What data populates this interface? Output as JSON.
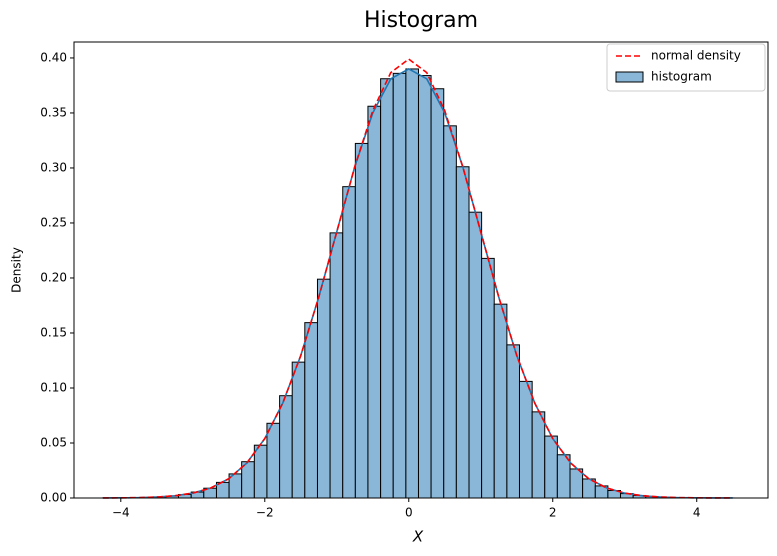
{
  "chart_data": {
    "type": "histogram",
    "title": "Histogram",
    "xlabel": "X",
    "ylabel": "Density",
    "xlim": [
      -4.65,
      4.99
    ],
    "ylim": [
      0,
      0.4145
    ],
    "xticks": [
      {
        "value": -4,
        "label": "−4"
      },
      {
        "value": -2,
        "label": "−2"
      },
      0,
      2,
      4
    ],
    "yticks": [
      {
        "value": 0,
        "label": "0.00"
      },
      {
        "value": 0.05,
        "label": "0.05"
      },
      {
        "value": 0.1,
        "label": "0.10"
      },
      {
        "value": 0.15,
        "label": "0.15"
      },
      {
        "value": 0.2,
        "label": "0.20"
      },
      {
        "value": 0.25,
        "label": "0.25"
      },
      {
        "value": 0.3,
        "label": "0.30"
      },
      {
        "value": 0.35,
        "label": "0.35"
      },
      {
        "value": 0.4,
        "label": "0.40"
      }
    ],
    "legend": "upper right",
    "histogram": {
      "name": "histogram",
      "color": "#8ab7d8",
      "edgecolor": "#000000",
      "bins": [
        -4.25,
        -4.075,
        -3.899,
        -3.724,
        -3.548,
        -3.373,
        -3.198,
        -3.022,
        -2.847,
        -2.671,
        -2.496,
        -2.321,
        -2.145,
        -1.97,
        -1.794,
        -1.619,
        -1.444,
        -1.268,
        -1.093,
        -0.917,
        -0.742,
        -0.567,
        -0.391,
        -0.216,
        -0.04,
        0.135,
        0.31,
        0.486,
        0.661,
        0.837,
        1.012,
        1.187,
        1.363,
        1.538,
        1.714,
        1.889,
        2.064,
        2.24,
        2.415,
        2.591,
        2.766,
        2.941,
        3.117,
        3.292,
        3.468,
        3.643,
        3.818,
        3.994,
        4.169,
        4.345,
        4.52
      ],
      "values": [
        7e-05,
        0.00014,
        0.00028,
        0.00053,
        0.001,
        0.0018,
        0.0032,
        0.0054,
        0.0089,
        0.0142,
        0.0219,
        0.033,
        0.048,
        0.0679,
        0.093,
        0.1235,
        0.1594,
        0.1989,
        0.241,
        0.283,
        0.3223,
        0.3561,
        0.3811,
        0.386,
        0.39,
        0.384,
        0.372,
        0.3383,
        0.3011,
        0.2598,
        0.2178,
        0.1762,
        0.1392,
        0.106,
        0.0783,
        0.0563,
        0.0393,
        0.0264,
        0.0173,
        0.011,
        0.0068,
        0.004,
        0.0023,
        0.0013,
        0.0007,
        0.0004,
        0.0002,
        0.0001,
        5e-05,
        3e-05
      ],
      "kde_color": "#1f77b4",
      "kde": [
        5e-05,
        0.00013,
        0.00035,
        0.00087,
        0.00203,
        0.00443,
        0.00909,
        0.01753,
        0.03174,
        0.05399,
        0.08628,
        0.12952,
        0.18265,
        0.24197,
        0.30114,
        0.35,
        0.381,
        0.39,
        0.381,
        0.35,
        0.30114,
        0.24197,
        0.18265,
        0.12952,
        0.08628,
        0.05399,
        0.03174,
        0.01753,
        0.00909,
        0.00443,
        0.00203,
        0.00087,
        0.00035,
        0.00013,
        5e-05,
        2e-05
      ]
    },
    "line": {
      "name": "normal density",
      "color": "#ff0000",
      "dashed": true,
      "x": [
        -4.25,
        -4,
        -3.75,
        -3.5,
        -3.25,
        -3,
        -2.75,
        -2.5,
        -2.25,
        -2,
        -1.75,
        -1.5,
        -1.25,
        -1,
        -0.75,
        -0.5,
        -0.25,
        0,
        0.25,
        0.5,
        0.75,
        1,
        1.25,
        1.5,
        1.75,
        2,
        2.25,
        2.5,
        2.75,
        3,
        3.25,
        3.5,
        3.75,
        4,
        4.25,
        4.5
      ],
      "values": [
        5e-05,
        0.00013,
        0.00035,
        0.00087,
        0.00203,
        0.00443,
        0.00909,
        0.01753,
        0.03174,
        0.05399,
        0.08628,
        0.12952,
        0.18265,
        0.24197,
        0.30114,
        0.35207,
        0.38667,
        0.39894,
        0.38667,
        0.35207,
        0.30114,
        0.24197,
        0.18265,
        0.12952,
        0.08628,
        0.05399,
        0.03174,
        0.01753,
        0.00909,
        0.00443,
        0.00203,
        0.00087,
        0.00035,
        0.00013,
        5e-05,
        2e-05
      ]
    }
  }
}
